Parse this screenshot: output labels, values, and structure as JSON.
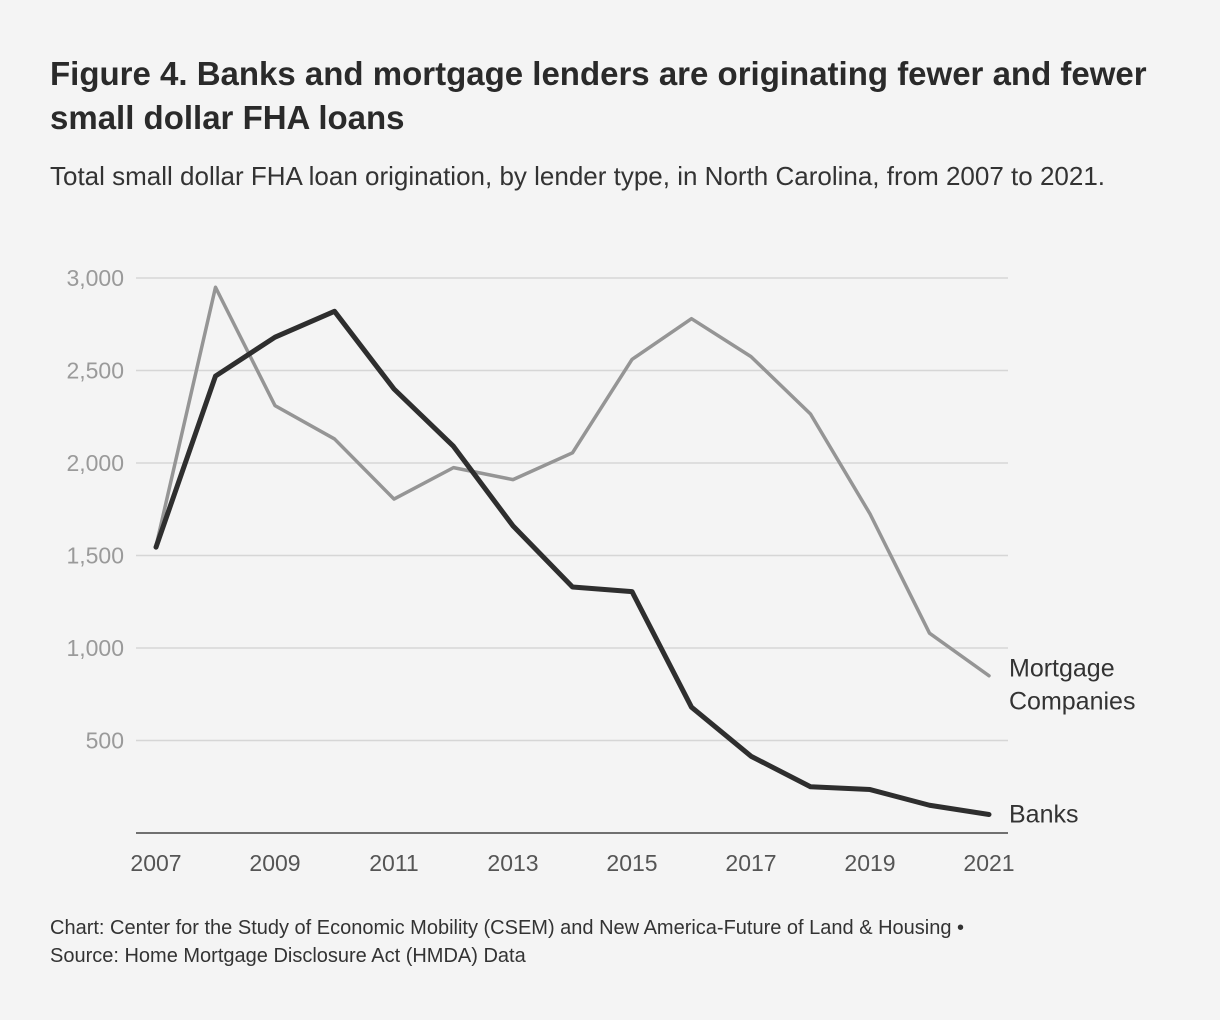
{
  "title": "Figure 4. Banks and mortgage lenders are originating fewer and fewer small dollar FHA loans",
  "subtitle": "Total small dollar FHA loan origination, by lender type, in North Carolina, from 2007 to 2021.",
  "footer": {
    "line1": "Chart: Center for the Study of Economic Mobility (CSEM) and New America-Future of Land & Housing •",
    "line2": "Source: Home Mortgage Disclosure Act (HMDA) Data"
  },
  "chart_data": {
    "type": "line",
    "x": [
      2007,
      2008,
      2009,
      2010,
      2011,
      2012,
      2013,
      2014,
      2015,
      2016,
      2017,
      2018,
      2019,
      2020,
      2021
    ],
    "x_tick_labels": [
      "2007",
      "2009",
      "2011",
      "2013",
      "2015",
      "2017",
      "2019",
      "2021"
    ],
    "y_tick_labels": [
      "500",
      "1,000",
      "1,500",
      "2,000",
      "2,500",
      "3,000"
    ],
    "y_ticks": [
      500,
      1000,
      1500,
      2000,
      2500,
      3000
    ],
    "ylim": [
      0,
      3000
    ],
    "xlim": [
      2007,
      2021
    ],
    "grid": true,
    "series": [
      {
        "name": "Mortgage Companies",
        "label_lines": [
          "Mortgage",
          "Companies"
        ],
        "color": "#959595",
        "values": [
          1550,
          2950,
          2310,
          2130,
          1805,
          1975,
          1910,
          2055,
          2560,
          2780,
          2575,
          2265,
          1725,
          1080,
          850
        ]
      },
      {
        "name": "Banks",
        "label_lines": [
          "Banks"
        ],
        "color": "#2e2e2e",
        "values": [
          1545,
          2470,
          2680,
          2820,
          2400,
          2090,
          1660,
          1330,
          1305,
          680,
          415,
          250,
          235,
          150,
          100
        ]
      }
    ]
  }
}
